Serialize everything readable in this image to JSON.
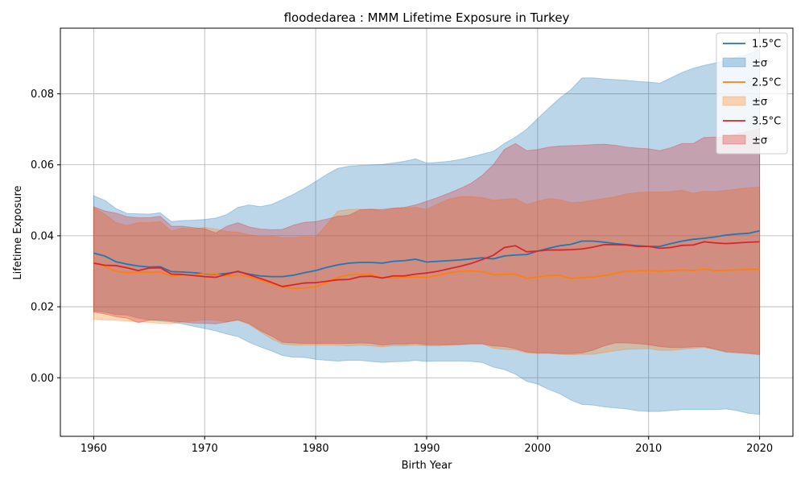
{
  "chart_data": {
    "type": "line",
    "title": "floodedarea : MMM Lifetime Exposure in Turkey",
    "xlabel": "Birth Year",
    "ylabel": "Lifetime Exposure",
    "xlim": [
      1957,
      2023
    ],
    "ylim": [
      -0.0165,
      0.0985
    ],
    "xticks": [
      1960,
      1970,
      1980,
      1990,
      2000,
      2010,
      2020
    ],
    "xtick_labels": [
      "1960",
      "1970",
      "1980",
      "1990",
      "2000",
      "2010",
      "2020"
    ],
    "yticks": [
      0.0,
      0.02,
      0.04,
      0.06,
      0.08
    ],
    "ytick_labels": [
      "0.00",
      "0.02",
      "0.04",
      "0.06",
      "0.08"
    ],
    "grid": true,
    "legend_position": "top-right",
    "x": [
      1960,
      1961,
      1962,
      1963,
      1964,
      1965,
      1966,
      1967,
      1968,
      1969,
      1970,
      1971,
      1972,
      1973,
      1974,
      1975,
      1976,
      1977,
      1978,
      1979,
      1980,
      1981,
      1982,
      1983,
      1984,
      1985,
      1986,
      1987,
      1988,
      1989,
      1990,
      1991,
      1992,
      1993,
      1994,
      1995,
      1996,
      1997,
      1998,
      1999,
      2000,
      2001,
      2002,
      2003,
      2004,
      2005,
      2006,
      2007,
      2008,
      2009,
      2010,
      2011,
      2012,
      2013,
      2014,
      2015,
      2016,
      2017,
      2018,
      2019,
      2020
    ],
    "series": [
      {
        "name": "1.5°C",
        "band_name": "±σ",
        "color": "#1f77b4",
        "values": [
          0.0351,
          0.0343,
          0.0327,
          0.032,
          0.0315,
          0.0312,
          0.0313,
          0.0299,
          0.0298,
          0.0296,
          0.0293,
          0.0291,
          0.0294,
          0.0299,
          0.0292,
          0.0287,
          0.0285,
          0.0285,
          0.0289,
          0.0296,
          0.0302,
          0.0311,
          0.0318,
          0.0323,
          0.0325,
          0.0325,
          0.0323,
          0.0328,
          0.033,
          0.0334,
          0.0326,
          0.0328,
          0.033,
          0.0332,
          0.0335,
          0.0338,
          0.0335,
          0.0343,
          0.0346,
          0.0347,
          0.0357,
          0.0365,
          0.0372,
          0.0376,
          0.0385,
          0.0385,
          0.0382,
          0.0378,
          0.0375,
          0.0372,
          0.037,
          0.037,
          0.0378,
          0.0385,
          0.039,
          0.0393,
          0.0397,
          0.0402,
          0.0405,
          0.0407,
          0.0414
        ],
        "upper": [
          0.0513,
          0.05,
          0.0477,
          0.0463,
          0.0462,
          0.0461,
          0.0465,
          0.044,
          0.0443,
          0.0444,
          0.0446,
          0.045,
          0.046,
          0.048,
          0.0487,
          0.0482,
          0.0488,
          0.0502,
          0.0517,
          0.0534,
          0.0553,
          0.0573,
          0.059,
          0.0596,
          0.0598,
          0.06,
          0.0601,
          0.0605,
          0.061,
          0.0617,
          0.0605,
          0.0607,
          0.061,
          0.0615,
          0.0622,
          0.063,
          0.0638,
          0.066,
          0.0678,
          0.07,
          0.073,
          0.076,
          0.0788,
          0.0812,
          0.0845,
          0.0845,
          0.0842,
          0.084,
          0.0838,
          0.0835,
          0.0833,
          0.083,
          0.0845,
          0.086,
          0.0872,
          0.088,
          0.0887,
          0.0895,
          0.0905,
          0.0912,
          0.0925
        ],
        "lower": [
          0.0188,
          0.0185,
          0.0178,
          0.0177,
          0.0168,
          0.0163,
          0.016,
          0.0157,
          0.0152,
          0.0145,
          0.0139,
          0.0132,
          0.0123,
          0.0116,
          0.01,
          0.0087,
          0.0076,
          0.0063,
          0.0058,
          0.0057,
          0.0052,
          0.0049,
          0.0047,
          0.0049,
          0.0049,
          0.0046,
          0.0043,
          0.0045,
          0.0046,
          0.0049,
          0.0046,
          0.0047,
          0.0047,
          0.0047,
          0.0046,
          0.0043,
          0.003,
          0.0023,
          0.001,
          -0.001,
          -0.0018,
          -0.0033,
          -0.0045,
          -0.0063,
          -0.0075,
          -0.0077,
          -0.0082,
          -0.0085,
          -0.0088,
          -0.0093,
          -0.0095,
          -0.0095,
          -0.0092,
          -0.009,
          -0.009,
          -0.009,
          -0.009,
          -0.0088,
          -0.0093,
          -0.01,
          -0.0103
        ]
      },
      {
        "name": "2.5°C",
        "band_name": "±σ",
        "color": "#ff7f0e",
        "values": [
          0.0325,
          0.0314,
          0.03,
          0.0296,
          0.0298,
          0.0297,
          0.0298,
          0.0286,
          0.029,
          0.0289,
          0.0294,
          0.0292,
          0.0286,
          0.029,
          0.0284,
          0.0276,
          0.0265,
          0.0256,
          0.0252,
          0.0253,
          0.0256,
          0.0268,
          0.0283,
          0.029,
          0.0291,
          0.0291,
          0.0282,
          0.0281,
          0.0283,
          0.0284,
          0.0283,
          0.0289,
          0.0295,
          0.03,
          0.0301,
          0.0299,
          0.029,
          0.0291,
          0.0292,
          0.028,
          0.0284,
          0.0288,
          0.0289,
          0.028,
          0.0282,
          0.0284,
          0.0288,
          0.0294,
          0.03,
          0.0301,
          0.0302,
          0.03,
          0.0302,
          0.0304,
          0.0302,
          0.0306,
          0.0302,
          0.0303,
          0.0304,
          0.0305,
          0.0306
        ],
        "upper": [
          0.048,
          0.0461,
          0.0437,
          0.0429,
          0.0437,
          0.0437,
          0.044,
          0.0413,
          0.0422,
          0.0419,
          0.0424,
          0.0419,
          0.0412,
          0.041,
          0.0403,
          0.0398,
          0.0398,
          0.0395,
          0.0395,
          0.0397,
          0.0396,
          0.0432,
          0.047,
          0.0474,
          0.0475,
          0.0475,
          0.047,
          0.0477,
          0.0478,
          0.048,
          0.0474,
          0.049,
          0.0503,
          0.051,
          0.051,
          0.0508,
          0.05,
          0.0503,
          0.0505,
          0.0488,
          0.0497,
          0.0505,
          0.0502,
          0.0493,
          0.0495,
          0.05,
          0.0505,
          0.051,
          0.0518,
          0.0522,
          0.0523,
          0.0523,
          0.0525,
          0.0528,
          0.052,
          0.0525,
          0.0525,
          0.0528,
          0.0532,
          0.0535,
          0.0537
        ],
        "lower": [
          0.0165,
          0.0163,
          0.0162,
          0.016,
          0.0158,
          0.0156,
          0.0153,
          0.0152,
          0.0158,
          0.016,
          0.0163,
          0.0162,
          0.0158,
          0.0162,
          0.015,
          0.013,
          0.011,
          0.0095,
          0.0092,
          0.0092,
          0.0092,
          0.0092,
          0.0092,
          0.009,
          0.0092,
          0.009,
          0.0087,
          0.009,
          0.009,
          0.0092,
          0.009,
          0.009,
          0.0092,
          0.0094,
          0.0097,
          0.0097,
          0.0083,
          0.008,
          0.0078,
          0.007,
          0.0068,
          0.0068,
          0.0066,
          0.0065,
          0.0066,
          0.0066,
          0.0071,
          0.0076,
          0.008,
          0.0081,
          0.0082,
          0.0077,
          0.0077,
          0.008,
          0.0083,
          0.0085,
          0.008,
          0.0075,
          0.0073,
          0.007,
          0.0068
        ]
      },
      {
        "name": "3.5°C",
        "band_name": "±σ",
        "color": "#d62728",
        "values": [
          0.0323,
          0.0317,
          0.0316,
          0.031,
          0.0302,
          0.0309,
          0.031,
          0.0292,
          0.0291,
          0.0288,
          0.0285,
          0.0283,
          0.0292,
          0.03,
          0.029,
          0.028,
          0.0269,
          0.0257,
          0.0262,
          0.0267,
          0.0268,
          0.0272,
          0.0276,
          0.0277,
          0.0285,
          0.0286,
          0.0281,
          0.0287,
          0.0287,
          0.0292,
          0.0295,
          0.03,
          0.0307,
          0.0314,
          0.0322,
          0.0333,
          0.0345,
          0.0367,
          0.0372,
          0.0355,
          0.0357,
          0.036,
          0.036,
          0.0361,
          0.0363,
          0.0368,
          0.0375,
          0.0375,
          0.0374,
          0.037,
          0.037,
          0.0365,
          0.0367,
          0.0373,
          0.0374,
          0.0383,
          0.038,
          0.0378,
          0.038,
          0.0382,
          0.0383
        ],
        "upper": [
          0.0482,
          0.047,
          0.0464,
          0.0454,
          0.0451,
          0.0451,
          0.0455,
          0.0427,
          0.0427,
          0.0423,
          0.042,
          0.0408,
          0.0427,
          0.0437,
          0.0425,
          0.0419,
          0.0417,
          0.0418,
          0.043,
          0.0438,
          0.044,
          0.0447,
          0.0455,
          0.0458,
          0.0473,
          0.0475,
          0.0474,
          0.0478,
          0.048,
          0.0487,
          0.0497,
          0.0508,
          0.052,
          0.0533,
          0.0548,
          0.057,
          0.06,
          0.0643,
          0.066,
          0.064,
          0.0643,
          0.065,
          0.0653,
          0.0654,
          0.0655,
          0.0657,
          0.0658,
          0.0655,
          0.065,
          0.0647,
          0.0645,
          0.064,
          0.0648,
          0.066,
          0.066,
          0.0677,
          0.0678,
          0.0678,
          0.0688,
          0.0695,
          0.0702
        ],
        "lower": [
          0.0185,
          0.018,
          0.0172,
          0.0168,
          0.0155,
          0.0162,
          0.0163,
          0.016,
          0.0157,
          0.0154,
          0.0153,
          0.0152,
          0.0157,
          0.0163,
          0.0153,
          0.0133,
          0.0118,
          0.01,
          0.0098,
          0.0097,
          0.0097,
          0.0097,
          0.0097,
          0.0097,
          0.0098,
          0.0097,
          0.0092,
          0.0095,
          0.0095,
          0.0097,
          0.0093,
          0.0093,
          0.0093,
          0.0093,
          0.0095,
          0.0095,
          0.009,
          0.0088,
          0.0082,
          0.0073,
          0.007,
          0.007,
          0.0068,
          0.0068,
          0.007,
          0.0078,
          0.009,
          0.0098,
          0.0098,
          0.0096,
          0.0093,
          0.0088,
          0.0085,
          0.0085,
          0.0087,
          0.0088,
          0.008,
          0.0072,
          0.007,
          0.0068,
          0.0065
        ]
      }
    ]
  }
}
